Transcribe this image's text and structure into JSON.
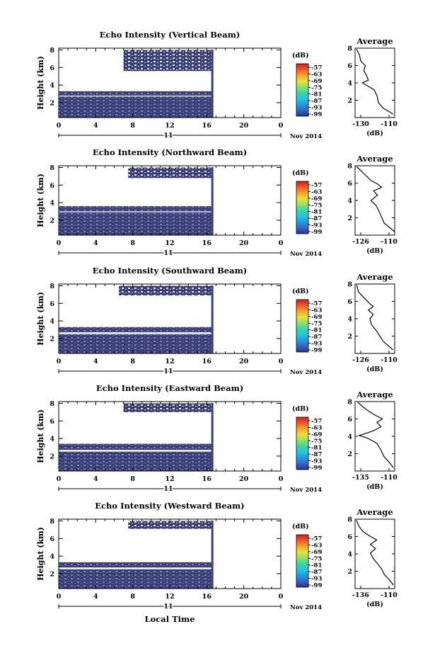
{
  "figure": {
    "xlabel": "Local Time",
    "date_label": "Nov 2014",
    "day_label": "11",
    "ylabel": "Height (km)",
    "avg_title": "Average",
    "avg_xlabel": "(dB)",
    "colorbar_unit": "(dB)",
    "colorbar_ticks": [
      "-57",
      "-63",
      "-69",
      "-75",
      "-81",
      "-87",
      "-93",
      "-99"
    ],
    "colors": {
      "echo": "#3a3f7a",
      "colormap": [
        "#2e3192",
        "#3a62c6",
        "#1f9bde",
        "#27c4e0",
        "#35d6a8",
        "#8fe06a",
        "#e6e23a",
        "#f5a623",
        "#ee5a2b",
        "#d7191c"
      ]
    }
  },
  "chart_data": [
    {
      "type": "heatmap",
      "title": "Echo Intensity (Vertical Beam)",
      "x_ticks": [
        "0",
        "4",
        "8",
        "12",
        "16",
        "20",
        "0"
      ],
      "y_ticks": [
        "2",
        "4",
        "6",
        "8"
      ],
      "xlim": [
        0,
        24
      ],
      "ylim": [
        0.3,
        8.2
      ],
      "data_end_hour": 16.6,
      "echo_regions": [
        {
          "x0": 0,
          "x1": 16.6,
          "y0": 0.3,
          "y1": 2.7
        },
        {
          "x0": 0,
          "x1": 16.6,
          "y0": 2.8,
          "y1": 3.3
        },
        {
          "x0": 7.0,
          "x1": 16.6,
          "y0": 5.6,
          "y1": 8.0
        }
      ],
      "avg": {
        "xlim": [
          -133,
          -106
        ],
        "x_ticks": [
          "-130",
          "-110"
        ],
        "ylim": [
          0,
          8
        ],
        "y_ticks": [
          "2",
          "4",
          "6",
          "8"
        ],
        "profile": [
          [
            -107,
            0.4
          ],
          [
            -110,
            0.7
          ],
          [
            -114,
            1.1
          ],
          [
            -117,
            1.7
          ],
          [
            -118,
            2.5
          ],
          [
            -120,
            3.2
          ],
          [
            -124,
            3.6
          ],
          [
            -128,
            4.0
          ],
          [
            -124,
            4.3
          ],
          [
            -125,
            4.8
          ],
          [
            -127,
            5.4
          ],
          [
            -126,
            6.0
          ],
          [
            -129,
            6.5
          ],
          [
            -130,
            7.2
          ],
          [
            -132,
            7.9
          ]
        ]
      }
    },
    {
      "type": "heatmap",
      "title": "Echo Intensity (Northward Beam)",
      "x_ticks": [
        "0",
        "4",
        "8",
        "12",
        "16",
        "20",
        "0"
      ],
      "y_ticks": [
        "2",
        "4",
        "6",
        "8"
      ],
      "xlim": [
        0,
        24
      ],
      "ylim": [
        0.3,
        8.2
      ],
      "data_end_hour": 16.6,
      "echo_regions": [
        {
          "x0": 0,
          "x1": 16.6,
          "y0": 0.3,
          "y1": 2.9
        },
        {
          "x0": 0,
          "x1": 16.6,
          "y0": 3.0,
          "y1": 3.6
        },
        {
          "x0": 7.5,
          "x1": 16.6,
          "y0": 6.8,
          "y1": 8.0
        }
      ],
      "avg": {
        "xlim": [
          -138,
          -108
        ],
        "x_ticks": [
          "-126",
          "-110"
        ],
        "ylim": [
          0,
          8
        ],
        "y_ticks": [
          "2",
          "4",
          "6",
          "8"
        ],
        "profile": [
          [
            -108,
            0.4
          ],
          [
            -112,
            0.9
          ],
          [
            -116,
            1.4
          ],
          [
            -118,
            2.1
          ],
          [
            -120,
            2.8
          ],
          [
            -122,
            3.4
          ],
          [
            -126,
            4.0
          ],
          [
            -121,
            4.6
          ],
          [
            -124,
            5.1
          ],
          [
            -118,
            5.5
          ],
          [
            -121,
            5.9
          ],
          [
            -126,
            6.3
          ],
          [
            -130,
            6.9
          ],
          [
            -134,
            7.5
          ],
          [
            -137,
            7.9
          ]
        ]
      }
    },
    {
      "type": "heatmap",
      "title": "Echo Intensity (Southward Beam)",
      "x_ticks": [
        "0",
        "4",
        "8",
        "12",
        "16",
        "20",
        "0"
      ],
      "y_ticks": [
        "2",
        "4",
        "6",
        "8"
      ],
      "xlim": [
        0,
        24
      ],
      "ylim": [
        0.3,
        8.2
      ],
      "data_end_hour": 16.6,
      "echo_regions": [
        {
          "x0": 0,
          "x1": 16.6,
          "y0": 0.3,
          "y1": 2.5
        },
        {
          "x0": 0,
          "x1": 16.6,
          "y0": 2.7,
          "y1": 3.3
        },
        {
          "x0": 6.5,
          "x1": 16.6,
          "y0": 6.9,
          "y1": 8.0
        }
      ],
      "avg": {
        "xlim": [
          -130,
          -106
        ],
        "x_ticks": [
          "-126",
          "-110"
        ],
        "ylim": [
          0,
          8
        ],
        "y_ticks": [
          "2",
          "4",
          "6",
          "8"
        ],
        "profile": [
          [
            -107,
            0.4
          ],
          [
            -110,
            0.9
          ],
          [
            -113,
            1.4
          ],
          [
            -115,
            2.0
          ],
          [
            -117,
            2.6
          ],
          [
            -120,
            3.3
          ],
          [
            -121,
            4.0
          ],
          [
            -119,
            4.5
          ],
          [
            -122,
            5.0
          ],
          [
            -119,
            5.4
          ],
          [
            -122,
            5.9
          ],
          [
            -125,
            6.5
          ],
          [
            -128,
            7.1
          ],
          [
            -129,
            7.9
          ]
        ]
      }
    },
    {
      "type": "heatmap",
      "title": "Echo Intensity (Eastward Beam)",
      "x_ticks": [
        "0",
        "4",
        "8",
        "12",
        "16",
        "20",
        "0"
      ],
      "y_ticks": [
        "2",
        "4",
        "6",
        "8"
      ],
      "xlim": [
        0,
        24
      ],
      "ylim": [
        0.3,
        8.2
      ],
      "data_end_hour": 16.6,
      "echo_regions": [
        {
          "x0": 0,
          "x1": 16.6,
          "y0": 0.3,
          "y1": 2.5
        },
        {
          "x0": 0,
          "x1": 16.6,
          "y0": 2.7,
          "y1": 3.4
        },
        {
          "x0": 7.0,
          "x1": 16.6,
          "y0": 7.0,
          "y1": 8.0
        }
      ],
      "avg": {
        "xlim": [
          -137,
          -108
        ],
        "x_ticks": [
          "-135",
          "-110"
        ],
        "ylim": [
          0,
          8
        ],
        "y_ticks": [
          "2",
          "4",
          "6",
          "8"
        ],
        "profile": [
          [
            -109,
            0.4
          ],
          [
            -112,
            1.0
          ],
          [
            -116,
            1.7
          ],
          [
            -118,
            2.4
          ],
          [
            -121,
            3.2
          ],
          [
            -128,
            3.8
          ],
          [
            -134,
            4.1
          ],
          [
            -124,
            4.6
          ],
          [
            -118,
            5.1
          ],
          [
            -121,
            5.6
          ],
          [
            -117,
            6.0
          ],
          [
            -123,
            6.5
          ],
          [
            -128,
            7.0
          ],
          [
            -132,
            7.5
          ],
          [
            -135,
            7.9
          ]
        ]
      }
    },
    {
      "type": "heatmap",
      "title": "Echo Intensity (Westward Beam)",
      "x_ticks": [
        "0",
        "4",
        "8",
        "12",
        "16",
        "20",
        "0"
      ],
      "y_ticks": [
        "2",
        "4",
        "6",
        "8"
      ],
      "xlim": [
        0,
        24
      ],
      "ylim": [
        0.3,
        8.2
      ],
      "data_end_hour": 16.6,
      "echo_regions": [
        {
          "x0": 0,
          "x1": 16.6,
          "y0": 0.3,
          "y1": 2.5
        },
        {
          "x0": 0,
          "x1": 16.6,
          "y0": 2.7,
          "y1": 3.3
        },
        {
          "x0": 7.5,
          "x1": 16.6,
          "y0": 7.1,
          "y1": 8.0
        }
      ],
      "avg": {
        "xlim": [
          -138,
          -107
        ],
        "x_ticks": [
          "-136",
          "-110"
        ],
        "ylim": [
          0,
          8
        ],
        "y_ticks": [
          "2",
          "4",
          "6",
          "8"
        ],
        "profile": [
          [
            -108,
            0.4
          ],
          [
            -111,
            1.0
          ],
          [
            -115,
            1.6
          ],
          [
            -117,
            2.2
          ],
          [
            -120,
            2.8
          ],
          [
            -124,
            3.5
          ],
          [
            -126,
            4.1
          ],
          [
            -122,
            4.6
          ],
          [
            -126,
            5.1
          ],
          [
            -121,
            5.6
          ],
          [
            -127,
            6.1
          ],
          [
            -132,
            6.6
          ],
          [
            -135,
            7.2
          ],
          [
            -137,
            7.9
          ]
        ]
      }
    }
  ]
}
